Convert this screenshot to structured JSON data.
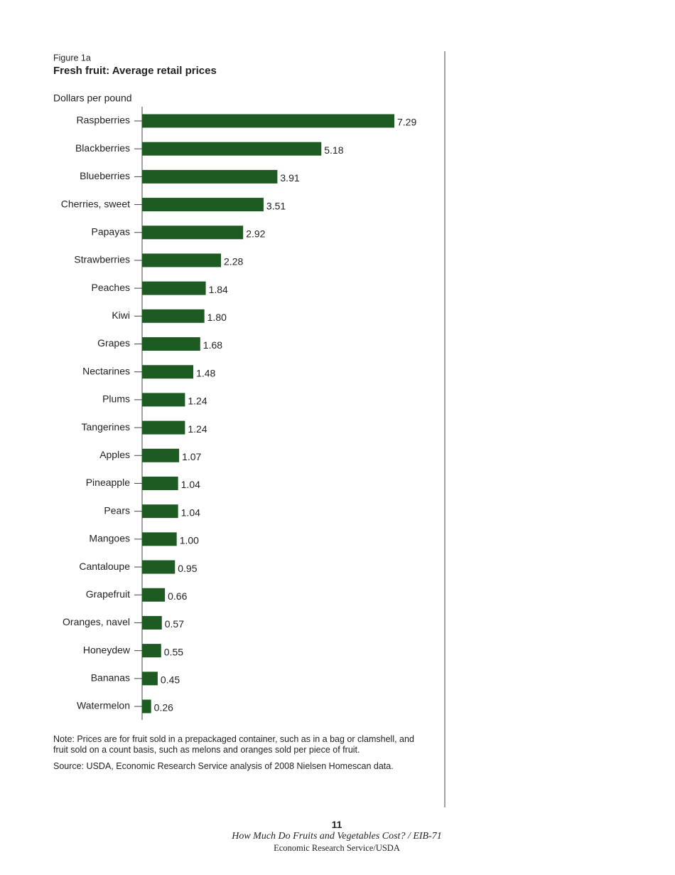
{
  "chart_data": {
    "type": "hbar",
    "figure_label": "Figure 1a",
    "title": "Fresh fruit: Average retail prices",
    "y_axis_label": "Dollars per pound",
    "categories": [
      "Raspberries",
      "Blackberries",
      "Blueberries",
      "Cherries, sweet",
      "Papayas",
      "Strawberries",
      "Peaches",
      "Kiwi",
      "Grapes",
      "Nectarines",
      "Plums",
      "Tangerines",
      "Apples",
      "Pineapple",
      "Pears",
      "Mangoes",
      "Cantaloupe",
      "Grapefruit",
      "Oranges, navel",
      "Honeydew",
      "Bananas",
      "Watermelon"
    ],
    "values": [
      7.29,
      5.18,
      3.91,
      3.51,
      2.92,
      2.28,
      1.84,
      1.8,
      1.68,
      1.48,
      1.24,
      1.24,
      1.07,
      1.04,
      1.04,
      1.0,
      0.95,
      0.66,
      0.57,
      0.55,
      0.45,
      0.26
    ],
    "value_labels": [
      "7.29",
      "5.18",
      "3.91",
      "3.51",
      "2.92",
      "2.28",
      "1.84",
      "1.80",
      "1.68",
      "1.48",
      "1.24",
      "1.24",
      "1.07",
      "1.04",
      "1.04",
      "1.00",
      "0.95",
      "0.66",
      "0.57",
      "0.55",
      "0.45",
      "0.26"
    ],
    "color": "#1e5b22",
    "note": "Note: Prices are for fruit sold in a prepackaged container, such as in a bag or clamshell, and fruit sold on a count basis, such as melons and oranges sold per piece of fruit.",
    "source": "Source: USDA, Economic Research Service analysis of 2008 Nielsen Homescan data."
  },
  "footer": {
    "page_number": "11",
    "publication": "How Much Do Fruits and Vegetables Cost? / EIB-71",
    "publisher": "Economic Research Service/USDA"
  }
}
